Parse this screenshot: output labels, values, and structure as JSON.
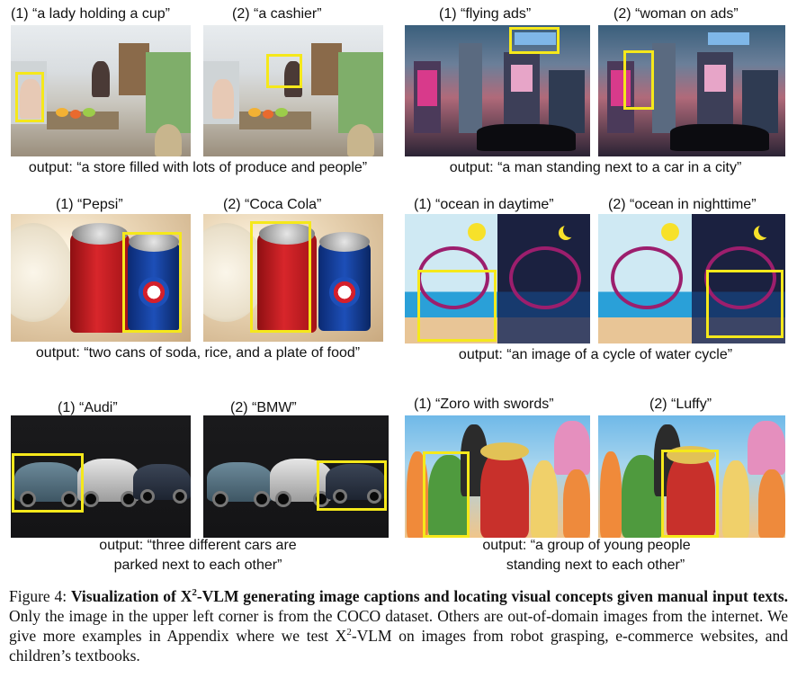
{
  "panels": {
    "store": {
      "labels": [
        "(1) “a lady holding a cup”",
        "(2) “a cashier”"
      ],
      "output": "output: “a store filled with lots of produce and people”"
    },
    "city": {
      "labels": [
        "(1) “flying ads”",
        "(2) “woman on ads”"
      ],
      "output": "output: “a man standing next to a car in a city”"
    },
    "soda": {
      "labels": [
        "(1) “Pepsi”",
        "(2) “Coca Cola”"
      ],
      "output": "output: “two cans of soda, rice, and a plate of food”"
    },
    "water": {
      "labels": [
        "(1) “ocean in daytime”",
        "(2) “ocean in nighttime”"
      ],
      "output": "output: “an image of a cycle of water cycle”"
    },
    "cars": {
      "labels": [
        "(1) “Audi”",
        "(2) “BMW”"
      ],
      "output_line1": "output: “three different cars are",
      "output_line2": "parked next to each other”"
    },
    "anime": {
      "labels": [
        "(1) “Zoro with swords”",
        "(2) “Luffy”"
      ],
      "output_line1": "output: “a group of young people",
      "output_line2": "standing next to each other”"
    }
  },
  "figure_caption": {
    "label": "Figure 4:",
    "bold_part1": "Visualization of X",
    "superscript": "2",
    "bold_part2": "-VLM generating image captions and locating visual concepts given manual input texts.",
    "rest_part1": " Only the image in the upper left corner is from the COCO dataset. Others are out-of-domain images from the internet. We give more examples in Appendix where we test X",
    "rest_superscript": "2",
    "rest_part2": "-VLM on images from robot grasping, e-commerce websites, and children’s textbooks."
  },
  "colors": {
    "highlight_box": "#f5e81b"
  }
}
